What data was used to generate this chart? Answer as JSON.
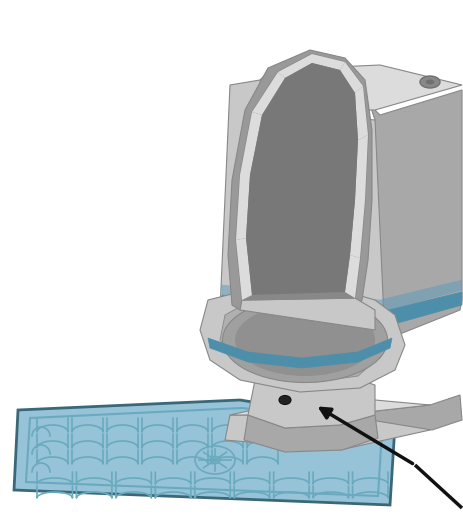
{
  "fig_width": 4.64,
  "fig_height": 5.15,
  "dpi": 100,
  "background_color": "#ffffff",
  "toilet_light": "#dcdcdc",
  "toilet_mid": "#c8c8c8",
  "toilet_dark": "#a8a8a8",
  "toilet_darker": "#888888",
  "toilet_shadow": "#707070",
  "toilet_highlight": "#efefef",
  "blue_stripe": "#4d8faa",
  "blue_stripe2": "#5a9cbd",
  "mat_fill": "#96c3d8",
  "mat_border": "#5a8fa8",
  "mat_pattern": "#6aaabe",
  "mat_dark": "#3a6878",
  "arrow_color": "#111111",
  "lid_dark": "#999999",
  "lid_inner": "#888888",
  "bowl_inner": "#b0b0b0"
}
